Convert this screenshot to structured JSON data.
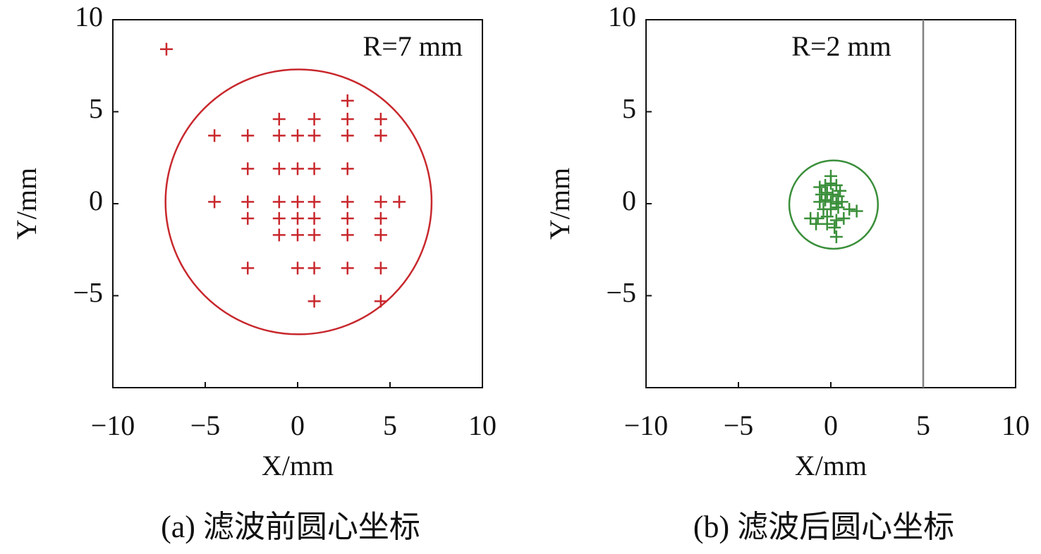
{
  "chart_data": [
    {
      "type": "scatter",
      "caption": "(a) 滤波前圆心坐标",
      "annotation": "R=7 mm",
      "xlabel": "X/mm",
      "ylabel": "Y/mm",
      "xlim": [
        -10,
        10
      ],
      "ylim": [
        -10,
        10
      ],
      "xticks": [
        {
          "value": -10,
          "label": "−10"
        },
        {
          "value": -5,
          "label": "−5"
        },
        0,
        5,
        10
      ],
      "yticks": [
        {
          "value": -5,
          "label": "−5"
        },
        0,
        5,
        10
      ],
      "series": [
        {
          "color": "#c8282d",
          "x": [
            -7.1,
            2.7,
            -1.0,
            0.9,
            2.7,
            4.5,
            -4.5,
            -2.7,
            -1.0,
            0,
            0.9,
            2.7,
            4.5,
            -2.7,
            -1.0,
            0,
            0.9,
            2.7,
            -4.5,
            -2.7,
            -1.0,
            0,
            0.9,
            2.7,
            4.5,
            5.5,
            -2.7,
            -1.0,
            0,
            0.9,
            2.7,
            4.5,
            -1.0,
            0,
            0.9,
            2.7,
            4.5,
            -2.7,
            0,
            0.9,
            2.7,
            4.5,
            0.9,
            4.5
          ],
          "y": [
            8.4,
            5.6,
            4.6,
            4.6,
            4.6,
            4.6,
            3.7,
            3.7,
            3.7,
            3.7,
            3.7,
            3.7,
            3.7,
            1.9,
            1.9,
            1.9,
            1.9,
            1.9,
            0.1,
            0.1,
            0.1,
            0.1,
            0.1,
            0.1,
            0.1,
            0.1,
            -0.8,
            -0.8,
            -0.8,
            -0.8,
            -0.8,
            -0.8,
            -1.7,
            -1.7,
            -1.7,
            -1.7,
            -1.7,
            -3.5,
            -3.5,
            -3.5,
            -3.5,
            -3.5,
            -5.3,
            -5.3
          ]
        }
      ],
      "circle": {
        "center": [
          0.05,
          0.1
        ],
        "radius": 7.2,
        "color": "#c8282d"
      }
    },
    {
      "type": "scatter",
      "caption": "(b) 滤波后圆心坐标",
      "annotation": "R=2 mm",
      "xlabel": "X/mm",
      "ylabel": "Y/mm",
      "xlim": [
        -10,
        10
      ],
      "ylim": [
        -10,
        10
      ],
      "xticks": [
        {
          "value": -10,
          "label": "−10"
        },
        {
          "value": -5,
          "label": "−5"
        },
        0,
        5,
        10
      ],
      "yticks": [
        {
          "value": -5,
          "label": "−5"
        },
        0,
        5,
        10
      ],
      "series": [
        {
          "color": "#3a8f3a",
          "x": [
            -0.6,
            -0.3,
            0,
            0.3,
            0.5,
            -0.5,
            -0.2,
            0.1,
            0.4,
            -0.6,
            -0.3,
            0,
            0.3,
            0.6,
            -0.4,
            0,
            0.4,
            1.0,
            1.4,
            -1.1,
            -0.7,
            -0.2,
            0.3,
            0.7,
            -0.2,
            0.2,
            0.3,
            0,
            -0.8
          ],
          "y": [
            0.9,
            1.0,
            1.1,
            1.0,
            0.7,
            0.5,
            0.6,
            0.5,
            0.4,
            0.1,
            0.2,
            0.1,
            0,
            0.1,
            -0.3,
            -0.3,
            -0.2,
            -0.3,
            -0.4,
            -0.8,
            -0.8,
            -0.7,
            -0.9,
            -0.8,
            -1.1,
            -1.3,
            -1.8,
            1.5,
            -1.1
          ]
        }
      ],
      "circle": {
        "center": [
          0.15,
          -0.05
        ],
        "radius": 2.4,
        "color": "#3a8f3a"
      },
      "vline": {
        "x": 5,
        "color": "#808080"
      }
    }
  ]
}
